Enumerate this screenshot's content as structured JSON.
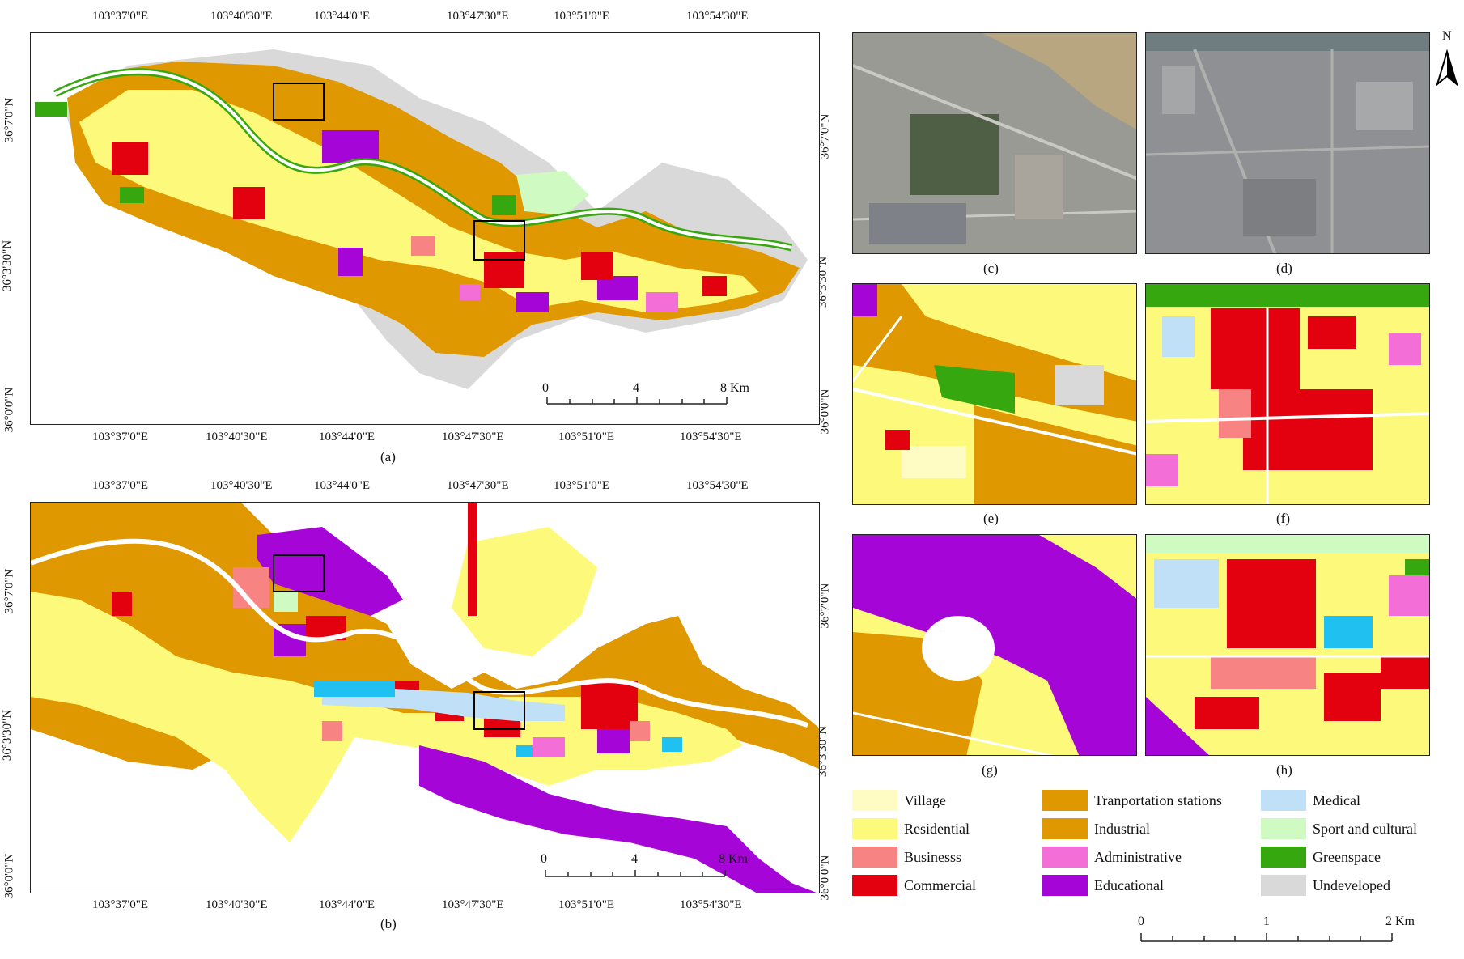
{
  "colors": {
    "village": "#fefcc2",
    "residential": "#fdf97a",
    "business": "#f88383",
    "commercial": "#e3000f",
    "transportation": "#e09800",
    "industrial": "#e09800",
    "administrative": "#f46ed8",
    "educational": "#a605d8",
    "medical": "#bfe0f6",
    "sport": "#cffbc3",
    "greenspace": "#36a70e",
    "undeveloped": "#d9d9d9",
    "river": "#ffffff",
    "boxes": "#000000"
  },
  "top_axis_labels": [
    "103°37'0\"E",
    "103°40'30\"E",
    "103°44'0\"E",
    "103°47'30\"E",
    "103°51'0\"E",
    "103°54'30\"E"
  ],
  "left_axis_labels": [
    "36°7'0\"N",
    "36°3'30\"N",
    "36°0'0\"N"
  ],
  "panel_captions": {
    "a": "(a)",
    "b": "(b)",
    "c": "(c)",
    "d": "(d)",
    "e": "(e)",
    "f": "(f)",
    "g": "(g)",
    "h": "(h)"
  },
  "scalebar_main": {
    "labels": [
      "0",
      "4",
      "8 Km"
    ]
  },
  "scalebar_small": {
    "labels": [
      "0",
      "1",
      "2 Km"
    ]
  },
  "north_arrow_label": "N",
  "legend": [
    {
      "label": "Village",
      "color_key": "village"
    },
    {
      "label": "Residential",
      "color_key": "residential"
    },
    {
      "label": "Businesss",
      "color_key": "business"
    },
    {
      "label": "Commercial",
      "color_key": "commercial"
    },
    {
      "label": "Tranportation stations",
      "color_key": "transportation"
    },
    {
      "label": "Industrial",
      "color_key": "industrial"
    },
    {
      "label": "Administrative",
      "color_key": "administrative"
    },
    {
      "label": "Educational",
      "color_key": "educational"
    },
    {
      "label": "Medical",
      "color_key": "medical"
    },
    {
      "label": "Sport and cultural",
      "color_key": "sport"
    },
    {
      "label": "Greenspace",
      "color_key": "greenspace"
    },
    {
      "label": "Undeveloped",
      "color_key": "undeveloped"
    }
  ]
}
